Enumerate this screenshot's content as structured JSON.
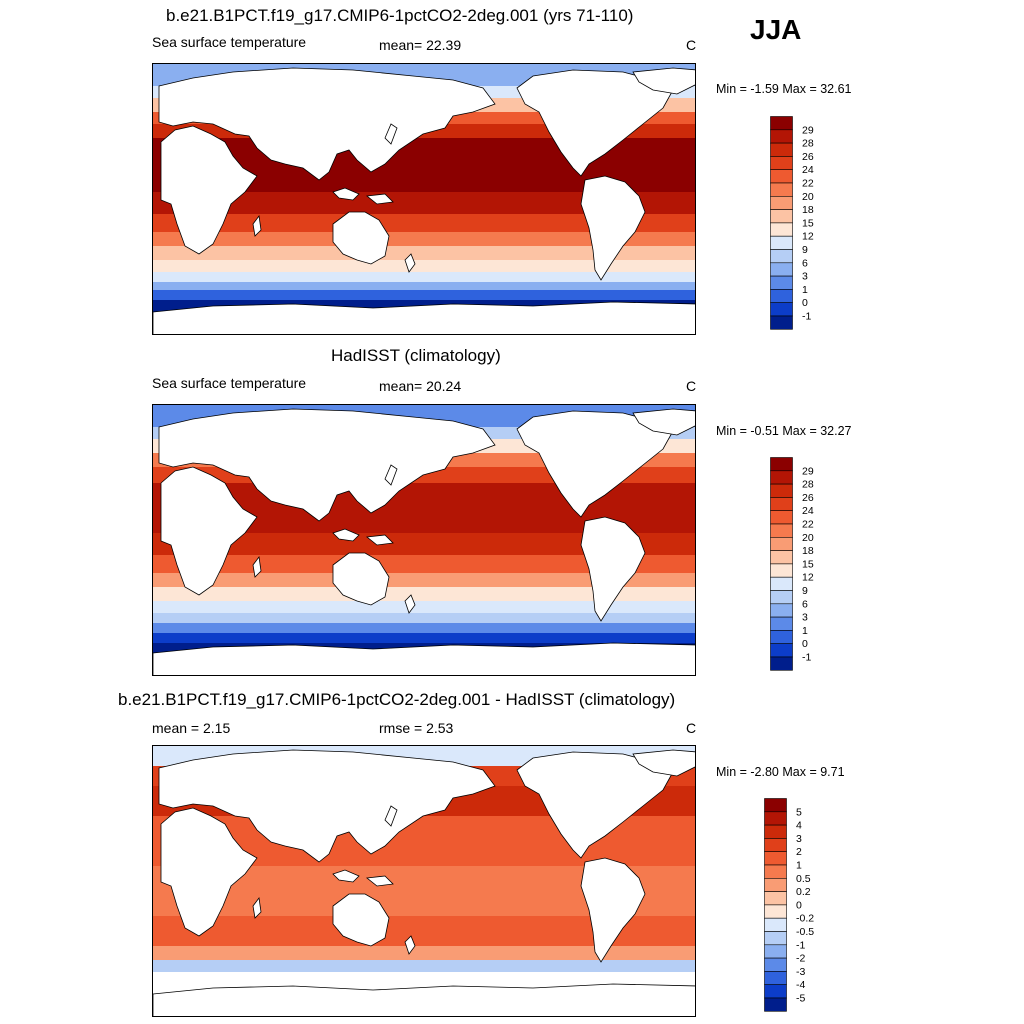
{
  "season": "JJA",
  "panels": [
    {
      "title": "b.e21.B1PCT.f19_g17.CMIP6-1pctCO2-2deg.001 (yrs 71-110)",
      "left_label": "Sea surface temperature",
      "center_label": "mean=  22.39",
      "right_label": "C",
      "minmax": "Min =  -1.59 Max =  32.61"
    },
    {
      "title": "HadISST (climatology)",
      "left_label": "Sea surface temperature",
      "center_label": "mean=  20.24",
      "right_label": "C",
      "minmax": "Min =  -0.51 Max =  32.27"
    },
    {
      "title": "b.e21.B1PCT.f19_g17.CMIP6-1pctCO2-2deg.001 - HadISST (climatology)",
      "left_label": "mean =   2.15",
      "center_label": "rmse =   2.53",
      "right_label": "C",
      "minmax": "Min =  -2.80 Max =   9.71"
    }
  ],
  "chart_data": [
    {
      "type": "heatmap",
      "title": "b.e21.B1PCT.f19_g17.CMIP6-1pctCO2-2deg.001 (yrs 71-110)",
      "variable": "Sea surface temperature",
      "units": "C",
      "mean": 22.39,
      "min": -1.59,
      "max": 32.61,
      "colorbar_levels": [
        "29",
        "28",
        "26",
        "24",
        "22",
        "20",
        "18",
        "15",
        "12",
        "9",
        "6",
        "3",
        "1",
        "0",
        "-1"
      ],
      "colorbar_colors": [
        "#8b0000",
        "#b31505",
        "#cc2a0a",
        "#e0401a",
        "#ee5a30",
        "#f57a4e",
        "#f99c74",
        "#fcc3a4",
        "#fde6d6",
        "#dae8fb",
        "#b5cef5",
        "#8aaff0",
        "#5c8ae8",
        "#2f62dd",
        "#0c3dc9",
        "#001e8c"
      ]
    },
    {
      "type": "heatmap",
      "title": "HadISST (climatology)",
      "variable": "Sea surface temperature",
      "units": "C",
      "mean": 20.24,
      "min": -0.51,
      "max": 32.27,
      "colorbar_levels": [
        "29",
        "28",
        "26",
        "24",
        "22",
        "20",
        "18",
        "15",
        "12",
        "9",
        "6",
        "3",
        "1",
        "0",
        "-1"
      ],
      "colorbar_colors": [
        "#8b0000",
        "#b31505",
        "#cc2a0a",
        "#e0401a",
        "#ee5a30",
        "#f57a4e",
        "#f99c74",
        "#fcc3a4",
        "#fde6d6",
        "#dae8fb",
        "#b5cef5",
        "#8aaff0",
        "#5c8ae8",
        "#2f62dd",
        "#0c3dc9",
        "#001e8c"
      ]
    },
    {
      "type": "heatmap",
      "title": "b.e21.B1PCT.f19_g17.CMIP6-1pctCO2-2deg.001 - HadISST (climatology)",
      "units": "C",
      "mean": 2.15,
      "rmse": 2.53,
      "min": -2.8,
      "max": 9.71,
      "colorbar_levels": [
        "5",
        "4",
        "3",
        "2",
        "1",
        "0.5",
        "0.2",
        "0",
        "-0.2",
        "-0.5",
        "-1",
        "-2",
        "-3",
        "-4",
        "-5"
      ],
      "colorbar_colors": [
        "#8b0000",
        "#b31505",
        "#cc2a0a",
        "#e0401a",
        "#ee5a30",
        "#f57a4e",
        "#f99c74",
        "#fcc3a4",
        "#fde6d6",
        "#dae8fb",
        "#b5cef5",
        "#8aaff0",
        "#5c8ae8",
        "#2f62dd",
        "#0c3dc9",
        "#001e8c"
      ]
    }
  ]
}
